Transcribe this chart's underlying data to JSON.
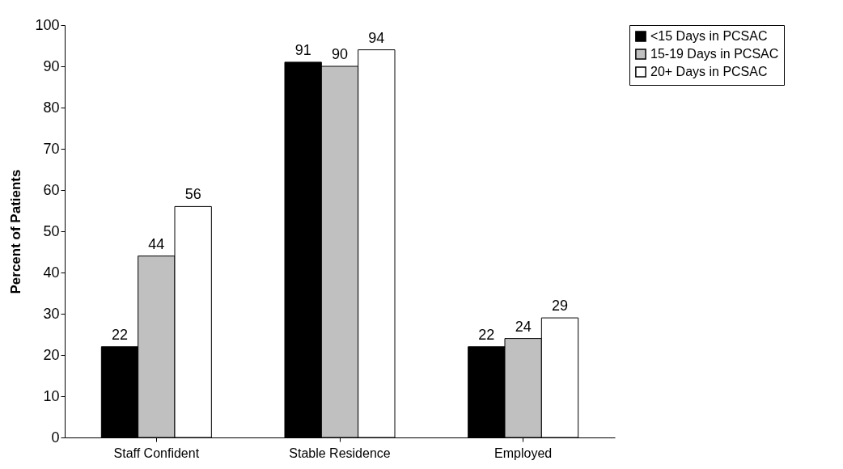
{
  "chart_data": {
    "type": "bar",
    "ylabel": "Percent of Patients",
    "categories": [
      "Staff Confident",
      "Stable Residence",
      "Employed"
    ],
    "series": [
      {
        "name": "<15 Days in PCSAC",
        "color": "#000000",
        "values": [
          22,
          91,
          22
        ]
      },
      {
        "name": "15-19 Days in PCSAC",
        "color": "#c0c0c0",
        "values": [
          44,
          90,
          24
        ]
      },
      {
        "name": "20+ Days in PCSAC",
        "color": "#ffffff",
        "values": [
          56,
          94,
          29
        ]
      }
    ],
    "ylim": [
      0,
      100
    ],
    "yticks": [
      0,
      10,
      20,
      30,
      40,
      50,
      60,
      70,
      80,
      90,
      100
    ],
    "data_labels": true,
    "legend": "right",
    "grid": false
  }
}
